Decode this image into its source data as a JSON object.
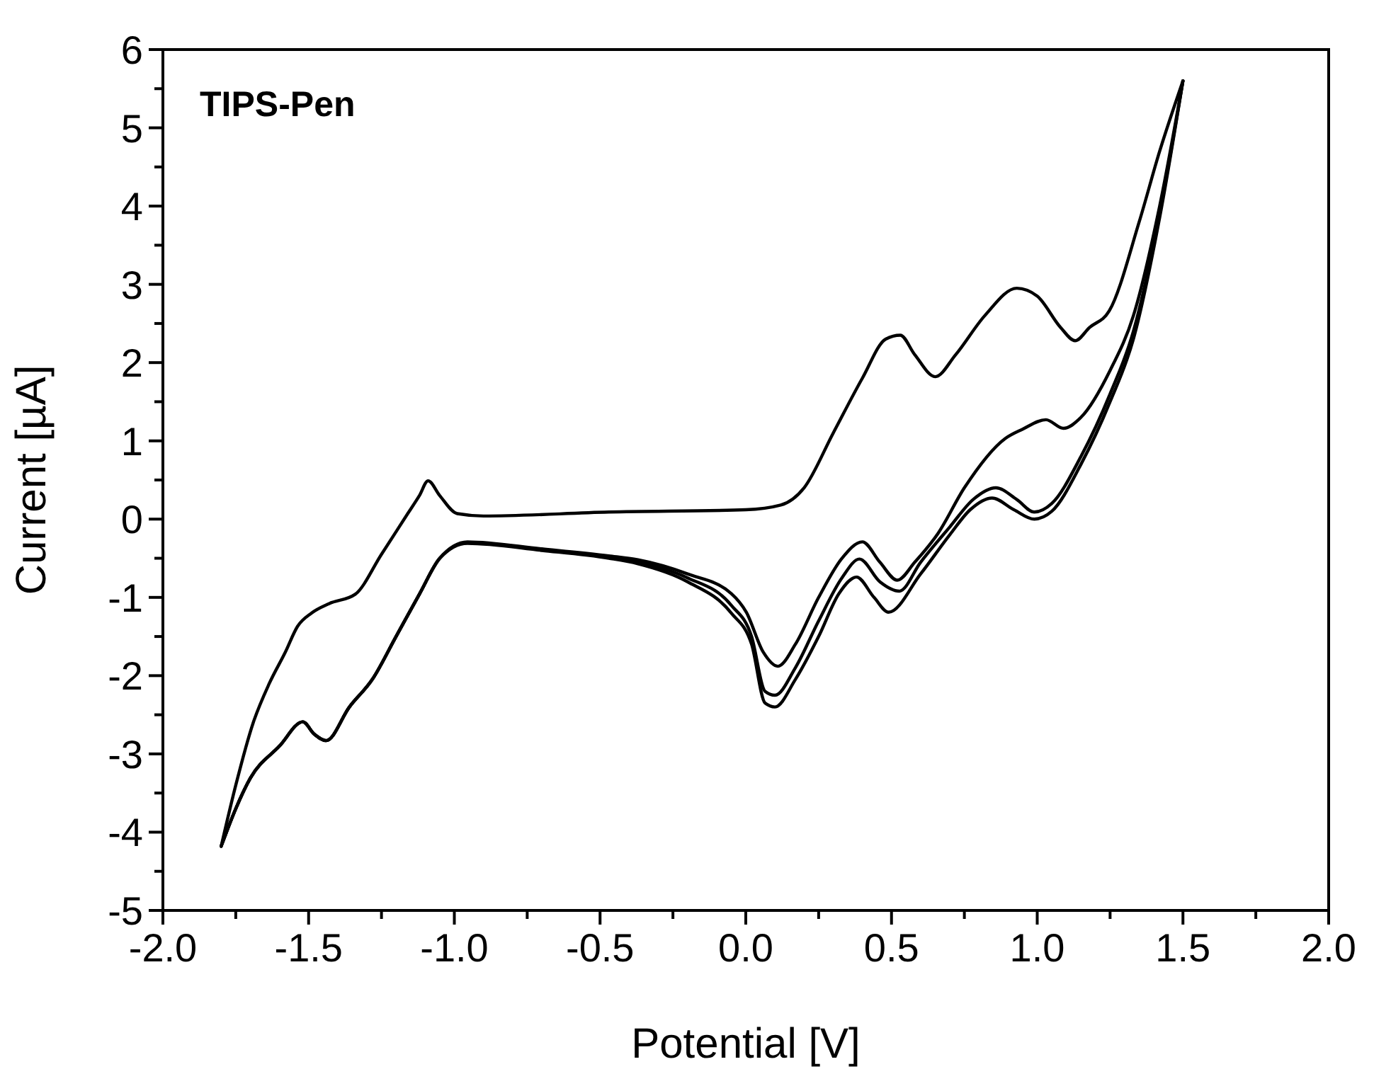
{
  "chart_data": {
    "type": "line",
    "title": "TIPS-Pen",
    "xlabel": "Potential [V]",
    "ylabel": "Current [µA]",
    "xlim": [
      -2.0,
      2.0
    ],
    "ylim": [
      -5,
      6
    ],
    "xticks": [
      {
        "value": -2,
        "label": "-2.0"
      },
      {
        "value": -1.75,
        "label": null
      },
      {
        "value": -1.5,
        "label": "-1.5"
      },
      {
        "value": -1.25,
        "label": null
      },
      {
        "value": -1,
        "label": "-1.0"
      },
      {
        "value": -0.75,
        "label": null
      },
      {
        "value": -0.5,
        "label": "-0.5"
      },
      {
        "value": -0.25,
        "label": null
      },
      {
        "value": 0,
        "label": "0.0"
      },
      {
        "value": 0.25,
        "label": null
      },
      {
        "value": 0.5,
        "label": "0.5"
      },
      {
        "value": 0.75,
        "label": null
      },
      {
        "value": 1,
        "label": "1.0"
      },
      {
        "value": 1.25,
        "label": null
      },
      {
        "value": 1.5,
        "label": "1.5"
      },
      {
        "value": 1.75,
        "label": null
      },
      {
        "value": 2,
        "label": "2.0"
      }
    ],
    "yticks": [
      -5,
      {
        "value": -4.5,
        "label": null
      },
      -4,
      {
        "value": -3.5,
        "label": null
      },
      -3,
      {
        "value": -2.5,
        "label": null
      },
      -2,
      {
        "value": -1.5,
        "label": null
      },
      -1,
      {
        "value": -0.5,
        "label": null
      },
      0,
      {
        "value": 0.5,
        "label": null
      },
      1,
      {
        "value": 1.5,
        "label": null
      },
      2,
      {
        "value": 2.5,
        "label": null
      },
      3,
      {
        "value": 3.5,
        "label": null
      },
      4,
      {
        "value": 4.5,
        "label": null
      },
      5,
      {
        "value": 5.5,
        "label": null
      },
      6
    ],
    "line_style": "solid",
    "marker": "none",
    "grid": false,
    "series": [
      {
        "color": "#000000",
        "x": [
          -1.8,
          -1.75,
          -1.69,
          -1.635,
          -1.58,
          -1.538,
          -1.49,
          -1.43,
          -1.34,
          -1.25,
          -1.16,
          -1.12,
          -1.09,
          -1.05,
          -0.99,
          -0.9,
          -0.47,
          0.0,
          0.12,
          0.2,
          0.3,
          0.4,
          0.48,
          0.53,
          0.58,
          0.65,
          0.72,
          0.82,
          0.93,
          1.0,
          1.08,
          1.13,
          1.18,
          1.247,
          1.35,
          1.42,
          1.5
        ],
        "values": [
          -4.18,
          -3.4,
          -2.6,
          -2.1,
          -1.7,
          -1.37,
          -1.2,
          -1.08,
          -0.96,
          -0.45,
          0.07,
          0.3,
          0.49,
          0.3,
          0.07,
          0.04,
          0.09,
          0.12,
          0.18,
          0.4,
          1.1,
          1.8,
          2.3,
          2.35,
          2.1,
          1.82,
          2.1,
          2.6,
          2.95,
          2.85,
          2.45,
          2.28,
          2.45,
          2.66,
          3.8,
          4.7,
          5.6
        ]
      },
      {
        "color": "#000000",
        "x": [
          -1.8,
          -1.75,
          -1.7,
          -1.6,
          -1.52,
          -1.48,
          -1.44,
          -1.36,
          -1.28,
          -1.2,
          -1.12,
          -1.05,
          -0.955,
          -0.7,
          -0.47,
          -0.37,
          -0.2,
          -0.05,
          0.002,
          0.06,
          0.11,
          0.17,
          0.25,
          0.33,
          0.4,
          0.46,
          0.52,
          0.58,
          0.66,
          0.75,
          0.89,
          0.95,
          1.03,
          1.09,
          1.15,
          1.25,
          1.33,
          1.42,
          1.5
        ],
        "values": [
          -4.18,
          -3.7,
          -3.31,
          -2.9,
          -2.59,
          -2.75,
          -2.83,
          -2.4,
          -2.04,
          -1.5,
          -0.96,
          -0.5,
          -0.29,
          -0.38,
          -0.47,
          -0.52,
          -0.7,
          -0.95,
          -1.19,
          -1.7,
          -1.88,
          -1.6,
          -1.0,
          -0.5,
          -0.29,
          -0.55,
          -0.78,
          -0.55,
          -0.18,
          0.4,
          1.03,
          1.15,
          1.27,
          1.16,
          1.3,
          1.9,
          2.6,
          4.0,
          5.6
        ]
      },
      {
        "color": "#000000",
        "x": [
          -1.8,
          -1.75,
          -1.7,
          -1.6,
          -1.52,
          -1.48,
          -1.44,
          -1.36,
          -1.28,
          -1.2,
          -1.12,
          -1.05,
          -0.955,
          -0.7,
          -0.47,
          -0.37,
          -0.2,
          -0.05,
          0.02,
          0.066,
          0.1,
          0.17,
          0.25,
          0.33,
          0.39,
          0.46,
          0.527,
          0.6,
          0.7,
          0.78,
          0.858,
          0.93,
          0.99,
          1.05,
          1.15,
          1.25,
          1.33,
          1.42,
          1.5
        ],
        "values": [
          -4.18,
          -3.7,
          -3.31,
          -2.9,
          -2.59,
          -2.75,
          -2.83,
          -2.4,
          -2.04,
          -1.5,
          -0.96,
          -0.5,
          -0.3,
          -0.39,
          -0.49,
          -0.55,
          -0.75,
          -1.1,
          -1.5,
          -2.2,
          -2.25,
          -1.9,
          -1.3,
          -0.75,
          -0.51,
          -0.8,
          -0.92,
          -0.55,
          -0.1,
          0.25,
          0.4,
          0.25,
          0.09,
          0.2,
          0.8,
          1.6,
          2.4,
          3.9,
          5.6
        ]
      },
      {
        "color": "#000000",
        "x": [
          -1.8,
          -1.75,
          -1.7,
          -1.6,
          -1.52,
          -1.48,
          -1.44,
          -1.36,
          -1.28,
          -1.2,
          -1.12,
          -1.05,
          -0.955,
          -0.7,
          -0.47,
          -0.37,
          -0.2,
          -0.05,
          0.02,
          0.066,
          0.1,
          0.17,
          0.25,
          0.32,
          0.38,
          0.44,
          0.49,
          0.6,
          0.7,
          0.77,
          0.845,
          0.92,
          0.99,
          1.05,
          1.15,
          1.25,
          1.33,
          1.42,
          1.5
        ],
        "values": [
          -4.18,
          -3.7,
          -3.31,
          -2.9,
          -2.59,
          -2.75,
          -2.83,
          -2.4,
          -2.04,
          -1.5,
          -0.96,
          -0.5,
          -0.31,
          -0.4,
          -0.5,
          -0.57,
          -0.8,
          -1.2,
          -1.6,
          -2.35,
          -2.4,
          -2.05,
          -1.5,
          -0.95,
          -0.74,
          -1.0,
          -1.19,
          -0.7,
          -0.2,
          0.12,
          0.27,
          0.12,
          0.0,
          0.1,
          0.7,
          1.5,
          2.3,
          3.85,
          5.6
        ]
      }
    ]
  }
}
